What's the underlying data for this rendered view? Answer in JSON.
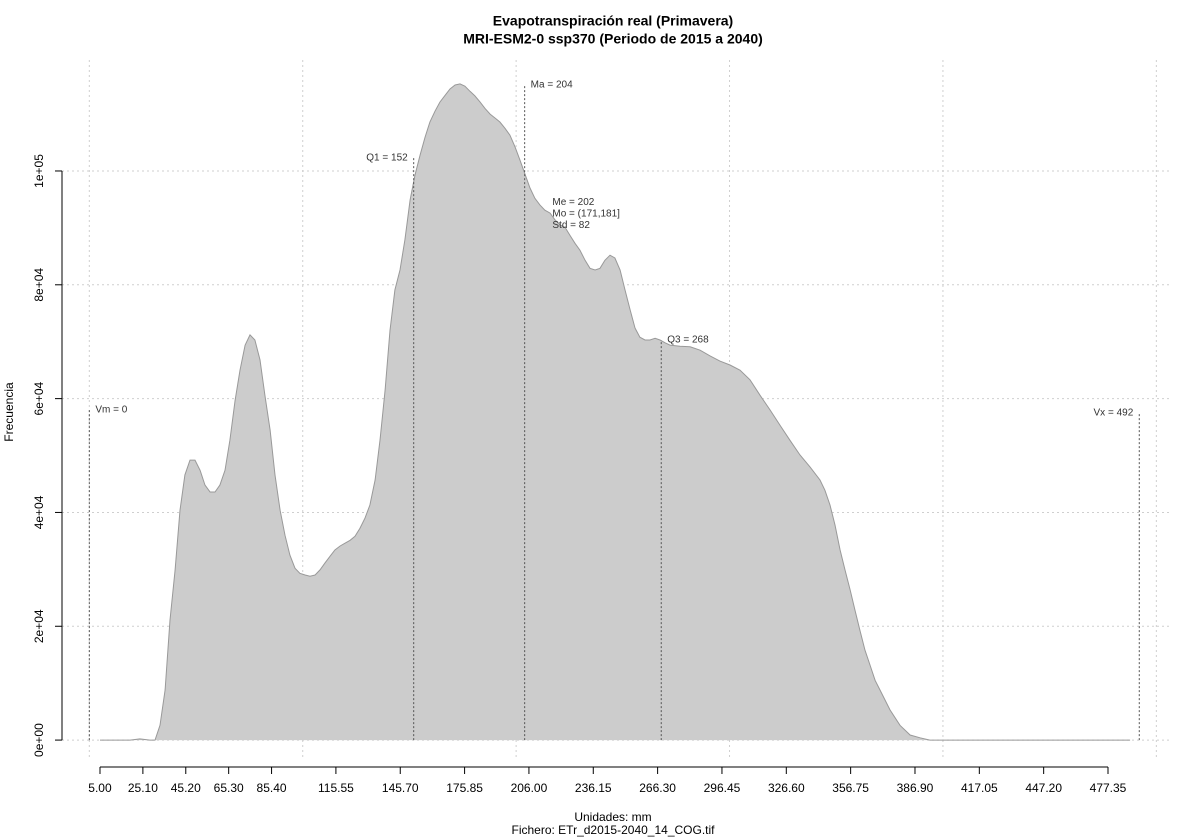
{
  "chart_data": {
    "type": "area",
    "title": "Evapotranspiración real (Primavera)",
    "subtitle": "MRI-ESM2-0 ssp370 (Periodo de 2015 a 2040)",
    "x_label": "Unidades: mm",
    "caption": "Fichero: ETr_d2015-2040_14_COG.tif",
    "y_label": "Frecuencia",
    "color": "#cccccc",
    "line_color": "#999999",
    "x": [
      5,
      19.1,
      23.7,
      28.4,
      30.8,
      33.1,
      35.5,
      37.8,
      40.2,
      42.5,
      44.8,
      47.2,
      49.5,
      51.9,
      54.2,
      56.6,
      58.9,
      61.2,
      63.6,
      65.9,
      68.3,
      70.6,
      73,
      75.3,
      77.6,
      80,
      82.3,
      84.7,
      87,
      89.4,
      91.7,
      94,
      96.4,
      98.7,
      101.1,
      103.4,
      105.8,
      108.1,
      110.4,
      112.8,
      115.1,
      117.5,
      119.8,
      122.2,
      124.5,
      126.8,
      129.2,
      131.5,
      133.9,
      136.2,
      138.6,
      140.9,
      143.2,
      145.6,
      147.9,
      150.3,
      152.6,
      155,
      157.3,
      159.6,
      162,
      164.3,
      166.7,
      169,
      171.4,
      173.7,
      176,
      178.4,
      180.7,
      183.1,
      185.4,
      187.8,
      190.1,
      192.4,
      194.8,
      197.1,
      199.5,
      201.8,
      204.2,
      206.5,
      208.8,
      211.2,
      213.5,
      215.9,
      218.2,
      220.6,
      222.9,
      225.2,
      227.6,
      229.9,
      232.3,
      234.6,
      237,
      239.3,
      241.6,
      244,
      246.3,
      248.7,
      251,
      253.4,
      255.7,
      258,
      260.4,
      262.7,
      265.1,
      267.4,
      269.8,
      272.1,
      276.8,
      281.5,
      286.2,
      290.9,
      295.5,
      300.2,
      304.9,
      309.6,
      314.3,
      319,
      323.7,
      328.3,
      333,
      337.7,
      342.4,
      344.7,
      347.1,
      349.4,
      351.8,
      354.1,
      356.5,
      358.8,
      361.1,
      363.5,
      365.8,
      368.2,
      370.5,
      375.2,
      379.9,
      384.6,
      389.3,
      393.9,
      398.6,
      426.7,
      487.7
    ],
    "values": [
      0,
      0,
      200,
      0,
      0,
      2600,
      8800,
      21100,
      29900,
      40400,
      46600,
      49200,
      49200,
      47400,
      44800,
      43600,
      43600,
      44800,
      47400,
      52700,
      59700,
      65000,
      69400,
      71200,
      70300,
      66800,
      60600,
      54500,
      46600,
      40400,
      36000,
      32500,
      30200,
      29300,
      29000,
      28800,
      29000,
      29900,
      31100,
      32300,
      33400,
      34100,
      34600,
      35100,
      35800,
      37200,
      39000,
      41300,
      45700,
      52700,
      61500,
      72000,
      79100,
      82600,
      87900,
      94900,
      99300,
      102800,
      105900,
      108600,
      110500,
      112100,
      113300,
      114400,
      115100,
      115300,
      114900,
      114000,
      113200,
      112100,
      111000,
      110000,
      109300,
      108600,
      107500,
      106300,
      104200,
      101900,
      99400,
      97000,
      95200,
      94000,
      93100,
      92600,
      91400,
      90500,
      90100,
      88700,
      87300,
      86100,
      84300,
      82900,
      82600,
      82900,
      84300,
      85200,
      84700,
      82600,
      79100,
      75600,
      72400,
      70800,
      70300,
      70300,
      70600,
      70300,
      69800,
      69400,
      69200,
      69100,
      68500,
      67500,
      66600,
      65900,
      65000,
      63300,
      60600,
      58000,
      55300,
      52700,
      50100,
      48000,
      45700,
      43900,
      41300,
      37800,
      33400,
      29900,
      26400,
      22800,
      19300,
      15800,
      13200,
      10500,
      8800,
      5300,
      2600,
      900,
      400,
      0,
      0,
      0,
      0
    ],
    "xlim": [
      -12.8,
      506.4
    ],
    "ylim": [
      -3500,
      119500
    ],
    "xticks": [
      {
        "value": 5,
        "label": "5.00"
      },
      {
        "value": 25.1,
        "label": "25.10"
      },
      {
        "value": 45.2,
        "label": "45.20"
      },
      {
        "value": 65.3,
        "label": "65.30"
      },
      {
        "value": 85.4,
        "label": "85.40"
      },
      {
        "value": 115.55,
        "label": "115.55"
      },
      {
        "value": 145.7,
        "label": "145.70"
      },
      {
        "value": 175.85,
        "label": "175.85"
      },
      {
        "value": 206,
        "label": "206.00"
      },
      {
        "value": 236.15,
        "label": "236.15"
      },
      {
        "value": 266.3,
        "label": "266.30"
      },
      {
        "value": 296.45,
        "label": "296.45"
      },
      {
        "value": 326.6,
        "label": "326.60"
      },
      {
        "value": 356.75,
        "label": "356.75"
      },
      {
        "value": 386.9,
        "label": "386.90"
      },
      {
        "value": 417.05,
        "label": "417.05"
      },
      {
        "value": 447.2,
        "label": "447.20"
      },
      {
        "value": 477.35,
        "label": "477.35"
      }
    ],
    "yticks": [
      {
        "value": 0,
        "label": "0e+00"
      },
      {
        "value": 20000,
        "label": "2e+04"
      },
      {
        "value": 40000,
        "label": "4e+04"
      },
      {
        "value": 60000,
        "label": "6e+04"
      },
      {
        "value": 80000,
        "label": "8e+04"
      },
      {
        "value": 100000,
        "label": "1e+05"
      }
    ],
    "grid": true,
    "xgrid": [
      0,
      100,
      200,
      300,
      400,
      500
    ],
    "annotations": [
      {
        "label": "Vm = 0",
        "x": 0,
        "y": 58000,
        "side": "right"
      },
      {
        "label": "Q1 = 152",
        "x": 152,
        "y": 102300,
        "side": "left"
      },
      {
        "label": "Ma = 204",
        "x": 204,
        "y": 115100,
        "side": "right"
      },
      {
        "label": "Q3 = 268",
        "x": 268,
        "y": 70300,
        "side": "right"
      },
      {
        "label": "Vx = 492",
        "x": 492,
        "y": 57500,
        "side": "left"
      }
    ],
    "stats": {
      "lines": [
        "Me = 202",
        "Mo = (171,181]",
        "Std = 82"
      ],
      "x": 217,
      "y": 94500
    }
  }
}
